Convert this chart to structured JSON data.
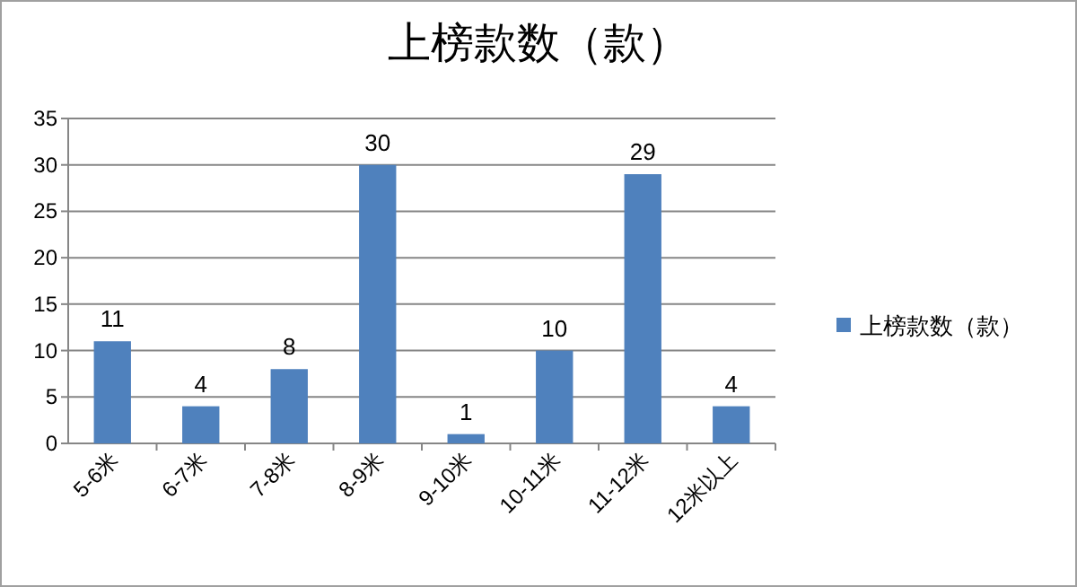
{
  "chart_data": {
    "type": "bar",
    "title": "上榜款数（款）",
    "categories": [
      "5-6米",
      "6-7米",
      "7-8米",
      "8-9米",
      "9-10米",
      "10-11米",
      "11-12米",
      "12米以上"
    ],
    "series": [
      {
        "name": "上榜款数（款）",
        "color": "#4f81bd",
        "values": [
          11,
          4,
          8,
          30,
          1,
          10,
          29,
          4
        ]
      }
    ],
    "ylim": [
      0,
      35
    ],
    "yticks": [
      0,
      5,
      10,
      15,
      20,
      25,
      30,
      35
    ],
    "grid": "y",
    "legend": "right",
    "data_labels": true
  }
}
